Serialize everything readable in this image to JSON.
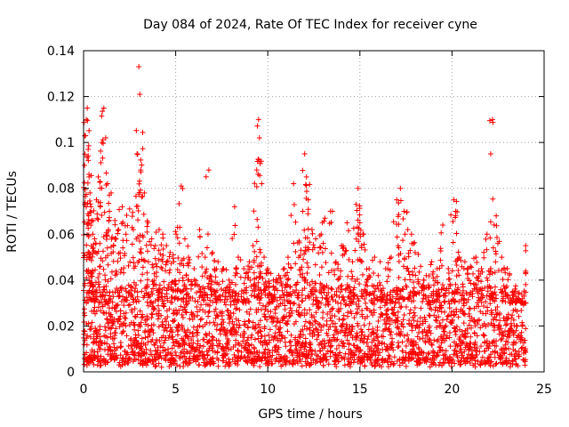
{
  "chart_data": {
    "type": "scatter",
    "title": "Day 084 of 2024, Rate Of TEC Index for receiver cyne",
    "xlabel": "GPS time / hours",
    "ylabel": "ROTI / TECUs",
    "xlim": [
      0,
      25
    ],
    "ylim": [
      0,
      0.14
    ],
    "x_ticks": [
      0,
      5,
      10,
      15,
      20,
      25
    ],
    "x_tick_labels": [
      "0",
      "5",
      "10",
      "15",
      "20",
      "25"
    ],
    "y_ticks": [
      0,
      0.02,
      0.04,
      0.06,
      0.08,
      0.1,
      0.12,
      0.14
    ],
    "y_tick_labels": [
      "0",
      "0.02",
      "0.04",
      "0.06",
      "0.08",
      "0.1",
      "0.12",
      "0.14"
    ],
    "grid": true,
    "marker": "+",
    "marker_color": "#ff0000",
    "series": [
      {
        "name": "ROTI",
        "note": "dense noise band of ~0.005-0.035 TECU/s spans 0-24 h (continuous background); listed points are representative samples",
        "x": [
          0.05,
          0.1,
          0.15,
          0.2,
          0.25,
          0.3,
          0.35,
          0.4,
          0.45,
          0.5,
          0.6,
          0.7,
          0.8,
          0.9,
          1.0,
          1.1,
          1.2,
          1.3,
          1.4,
          1.5,
          1.7,
          1.9,
          2.1,
          2.3,
          2.5,
          2.7,
          2.9,
          3.0,
          3.05,
          3.1,
          3.3,
          3.5,
          3.7,
          3.9,
          4.1,
          4.3,
          4.5,
          4.7,
          4.9,
          5.1,
          5.3,
          5.5,
          5.7,
          6.0,
          6.3,
          6.6,
          6.8,
          7.0,
          7.3,
          7.6,
          7.9,
          8.2,
          8.4,
          8.7,
          9.0,
          9.2,
          9.4,
          9.5,
          9.55,
          9.6,
          9.8,
          10.0,
          10.3,
          10.6,
          10.9,
          11.1,
          11.4,
          11.7,
          11.9,
          12.0,
          12.1,
          12.2,
          12.4,
          12.6,
          12.9,
          13.1,
          13.4,
          13.7,
          14.0,
          14.3,
          14.6,
          14.8,
          14.9,
          15.0,
          15.2,
          15.5,
          15.8,
          16.1,
          16.4,
          16.7,
          17.0,
          17.2,
          17.4,
          17.6,
          17.8,
          18.0,
          18.3,
          18.6,
          18.9,
          19.2,
          19.5,
          19.8,
          20.1,
          20.2,
          20.4,
          20.7,
          21.0,
          21.3,
          21.6,
          21.9,
          22.1,
          22.2,
          22.4,
          22.7,
          23.0,
          23.3,
          23.6,
          23.9,
          24.0
        ],
        "y": [
          0.09,
          0.103,
          0.11,
          0.115,
          0.097,
          0.085,
          0.078,
          0.072,
          0.066,
          0.06,
          0.058,
          0.075,
          0.085,
          0.083,
          0.1,
          0.115,
          0.102,
          0.082,
          0.07,
          0.078,
          0.066,
          0.062,
          0.072,
          0.06,
          0.071,
          0.062,
          0.095,
          0.133,
          0.121,
          0.088,
          0.078,
          0.065,
          0.058,
          0.055,
          0.062,
          0.06,
          0.055,
          0.052,
          0.048,
          0.063,
          0.081,
          0.058,
          0.05,
          0.045,
          0.062,
          0.05,
          0.088,
          0.052,
          0.048,
          0.045,
          0.04,
          0.072,
          0.05,
          0.045,
          0.048,
          0.055,
          0.088,
          0.11,
          0.102,
          0.052,
          0.05,
          0.045,
          0.04,
          0.042,
          0.045,
          0.05,
          0.082,
          0.057,
          0.07,
          0.095,
          0.085,
          0.075,
          0.062,
          0.058,
          0.06,
          0.067,
          0.07,
          0.048,
          0.055,
          0.065,
          0.048,
          0.073,
          0.08,
          0.065,
          0.06,
          0.045,
          0.05,
          0.048,
          0.045,
          0.05,
          0.075,
          0.08,
          0.07,
          0.062,
          0.06,
          0.052,
          0.046,
          0.042,
          0.048,
          0.045,
          0.064,
          0.045,
          0.075,
          0.07,
          0.05,
          0.048,
          0.046,
          0.05,
          0.045,
          0.06,
          0.045,
          0.11,
          0.068,
          0.05,
          0.045,
          0.035,
          0.032,
          0.03,
          0.055
        ],
        "background_band": {
          "x_range": [
            0,
            24
          ],
          "y_min": 0.002,
          "y_max": 0.035
        }
      }
    ]
  }
}
